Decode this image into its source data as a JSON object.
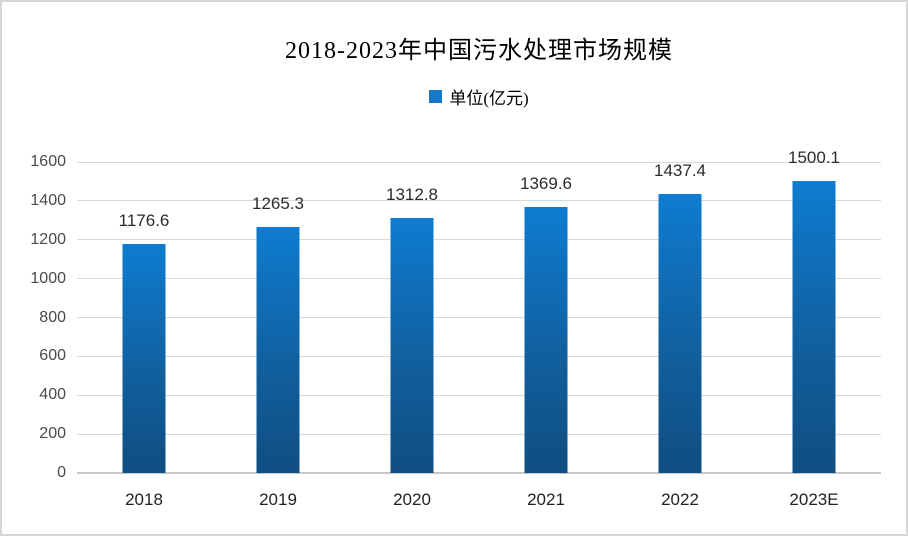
{
  "title": "2018-2023年中国污水处理市场规模",
  "legend": {
    "label": "单位(亿元)",
    "marker_color": "#1878c8"
  },
  "colors": {
    "bar_gradient_top": "#0e7cd1",
    "bar_gradient_bottom": "#0f4e81",
    "gridline": "#d9d9d9",
    "axis_line": "#c9c7c7",
    "frame_border": "#d6d6d6"
  },
  "chart_data": {
    "type": "bar",
    "title": "2018-2023年中国污水处理市场规模",
    "series_name": "单位(亿元)",
    "categories": [
      "2018",
      "2019",
      "2020",
      "2021",
      "2022",
      "2023E"
    ],
    "values": [
      1176.6,
      1265.3,
      1312.8,
      1369.6,
      1437.4,
      1500.1
    ],
    "value_labels": [
      "1176.6",
      "1265.3",
      "1312.8",
      "1369.6",
      "1437.4",
      "1500.1"
    ],
    "xlabel": "",
    "ylabel": "",
    "ylim": [
      0,
      1600
    ],
    "yticks": [
      0,
      200,
      400,
      600,
      800,
      1000,
      1200,
      1400,
      1600
    ],
    "grid": true,
    "legend_position": "top",
    "data_labels": "outside-end"
  }
}
